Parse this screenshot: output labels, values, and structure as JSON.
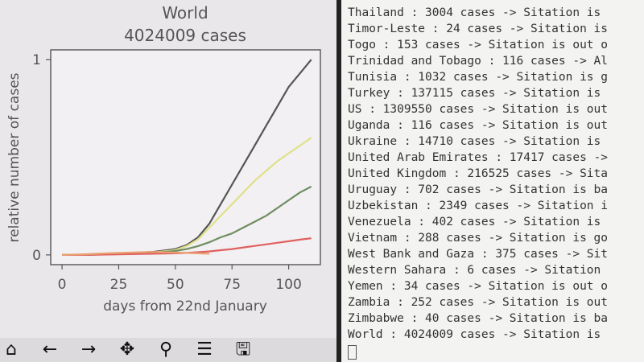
{
  "chart_data": {
    "type": "line",
    "title": "World",
    "subtitle": "4024009 cases",
    "xlabel": "days from 22nd January",
    "ylabel": "relative number of cases",
    "xlim": [
      -5,
      114
    ],
    "ylim": [
      -0.05,
      1.05
    ],
    "xticks": [
      "0",
      "25",
      "50",
      "75",
      "100"
    ],
    "yticks": [
      "0",
      "1"
    ],
    "grid": false,
    "series": [
      {
        "color": "#555555",
        "x": [
          0,
          10,
          20,
          30,
          40,
          50,
          55,
          60,
          65,
          70,
          75,
          80,
          85,
          90,
          95,
          100,
          105,
          110
        ],
        "y": [
          0,
          0,
          0.005,
          0.01,
          0.015,
          0.03,
          0.05,
          0.09,
          0.16,
          0.26,
          0.36,
          0.46,
          0.56,
          0.66,
          0.76,
          0.86,
          0.93,
          1.0
        ]
      },
      {
        "color": "#e0e08a",
        "x": [
          0,
          10,
          20,
          30,
          40,
          50,
          55,
          60,
          65,
          70,
          75,
          80,
          85,
          90,
          95,
          100,
          105,
          110
        ],
        "y": [
          0,
          0,
          0.004,
          0.008,
          0.012,
          0.025,
          0.045,
          0.08,
          0.14,
          0.2,
          0.26,
          0.32,
          0.38,
          0.43,
          0.48,
          0.52,
          0.56,
          0.6
        ]
      },
      {
        "color": "#6e8e62",
        "x": [
          0,
          10,
          20,
          30,
          40,
          50,
          55,
          60,
          65,
          70,
          75,
          80,
          85,
          90,
          95,
          100,
          105,
          110
        ],
        "y": [
          0,
          0,
          0.003,
          0.006,
          0.01,
          0.02,
          0.03,
          0.045,
          0.065,
          0.09,
          0.11,
          0.14,
          0.17,
          0.2,
          0.24,
          0.28,
          0.32,
          0.35
        ]
      },
      {
        "color": "#e06060",
        "x": [
          0,
          10,
          20,
          30,
          40,
          50,
          55,
          60,
          65,
          70,
          75,
          80,
          85,
          90,
          95,
          100,
          105,
          110
        ],
        "y": [
          0,
          0,
          0.002,
          0.004,
          0.006,
          0.008,
          0.01,
          0.014,
          0.018,
          0.024,
          0.03,
          0.038,
          0.046,
          0.054,
          0.062,
          0.07,
          0.078,
          0.085
        ]
      },
      {
        "color": "#e8a070",
        "x": [
          0,
          10,
          20,
          30,
          40,
          50,
          55,
          60,
          65
        ],
        "y": [
          0,
          0.003,
          0.008,
          0.012,
          0.015,
          0.012,
          0.01,
          0.008,
          0.006
        ]
      }
    ]
  },
  "toolbar": {
    "buttons": [
      {
        "name": "home-icon",
        "glyph": "⌂"
      },
      {
        "name": "back-arrow-icon",
        "glyph": "←"
      },
      {
        "name": "forward-arrow-icon",
        "glyph": "→"
      },
      {
        "name": "pan-icon",
        "glyph": "✥"
      },
      {
        "name": "zoom-icon",
        "glyph": "⚲"
      },
      {
        "name": "configure-subplots-icon",
        "glyph": "☰"
      },
      {
        "name": "save-icon",
        "glyph": "🖫"
      }
    ]
  },
  "terminal": {
    "lines": [
      "Thailand : 3004 cases -> Sitation is",
      "Timor-Leste : 24 cases -> Sitation is",
      "Togo : 153 cases -> Sitation is out o",
      "Trinidad and Tobago : 116 cases -> Al",
      "Tunisia : 1032 cases -> Sitation is g",
      "Turkey : 137115 cases -> Sitation is",
      "US : 1309550 cases -> Sitation is out",
      "Uganda : 116 cases -> Sitation is out",
      "Ukraine : 14710 cases -> Sitation is",
      "United Arab Emirates : 17417 cases ->",
      "United Kingdom : 216525 cases -> Sita",
      "Uruguay : 702 cases -> Sitation is ba",
      "Uzbekistan : 2349 cases -> Sitation i",
      "Venezuela : 402 cases -> Sitation is",
      "Vietnam : 288 cases -> Sitation is go",
      "West Bank and Gaza : 375 cases -> Sit",
      "Western Sahara : 6 cases -> Sitation",
      "Yemen : 34 cases -> Sitation is out o",
      "Zambia : 252 cases -> Sitation is out",
      "Zimbabwe : 40 cases -> Sitation is ba",
      "World : 4024009 cases -> Sitation is"
    ]
  }
}
